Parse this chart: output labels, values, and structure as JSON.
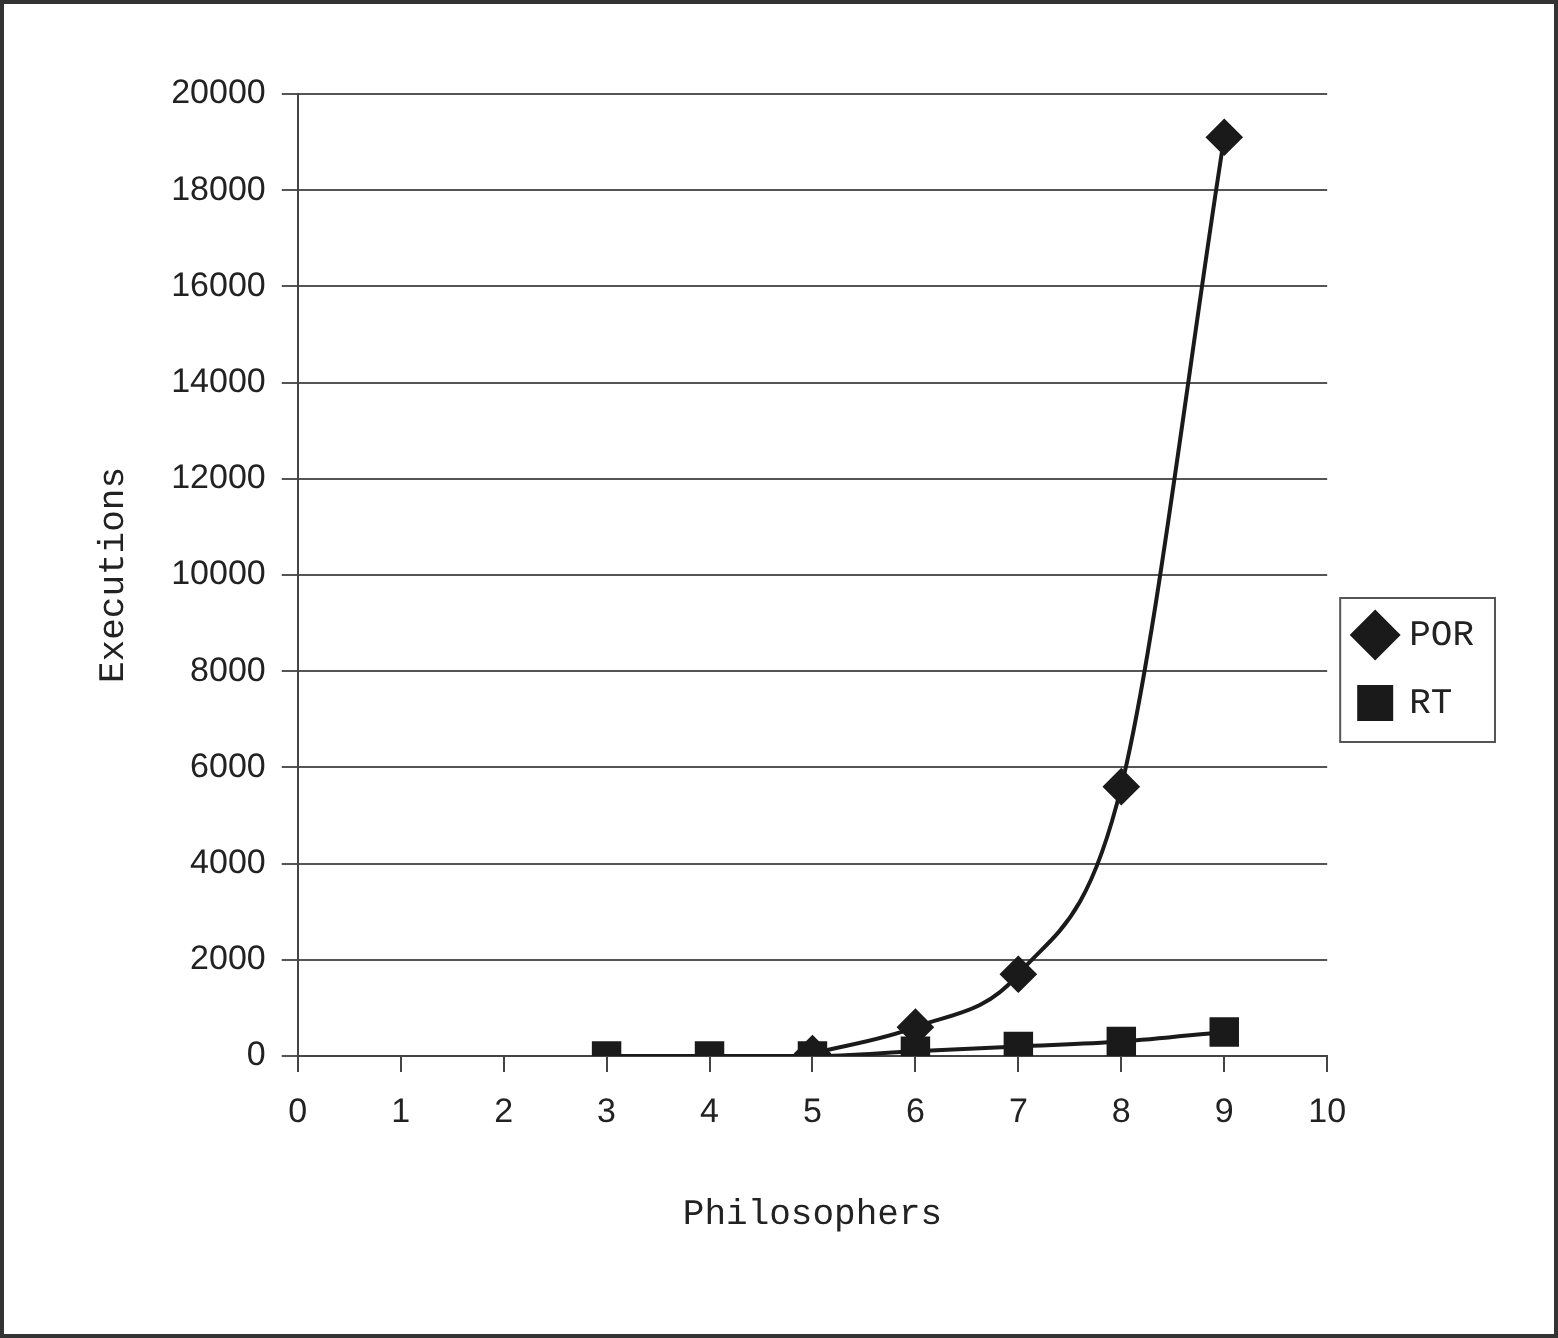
{
  "chart_data": {
    "type": "line",
    "xlabel": "Philosophers",
    "ylabel": "Executions",
    "x": [
      3,
      4,
      5,
      6,
      7,
      8,
      9
    ],
    "series": [
      {
        "name": "POR",
        "color": "#1a1a1a",
        "marker": "diamond",
        "values": [
          null,
          null,
          50,
          600,
          1700,
          5600,
          19100
        ]
      },
      {
        "name": "RT",
        "color": "#1a1a1a",
        "marker": "square",
        "values": [
          0,
          0,
          0,
          100,
          200,
          300,
          500
        ]
      }
    ],
    "xlim": [
      0,
      10
    ],
    "xticks": [
      0,
      1,
      2,
      3,
      4,
      5,
      6,
      7,
      8,
      9,
      10
    ],
    "ylim": [
      0,
      20000
    ],
    "yticks": [
      0,
      2000,
      4000,
      6000,
      8000,
      10000,
      12000,
      14000,
      16000,
      18000,
      20000
    ],
    "grid": "y",
    "legend": "right"
  }
}
